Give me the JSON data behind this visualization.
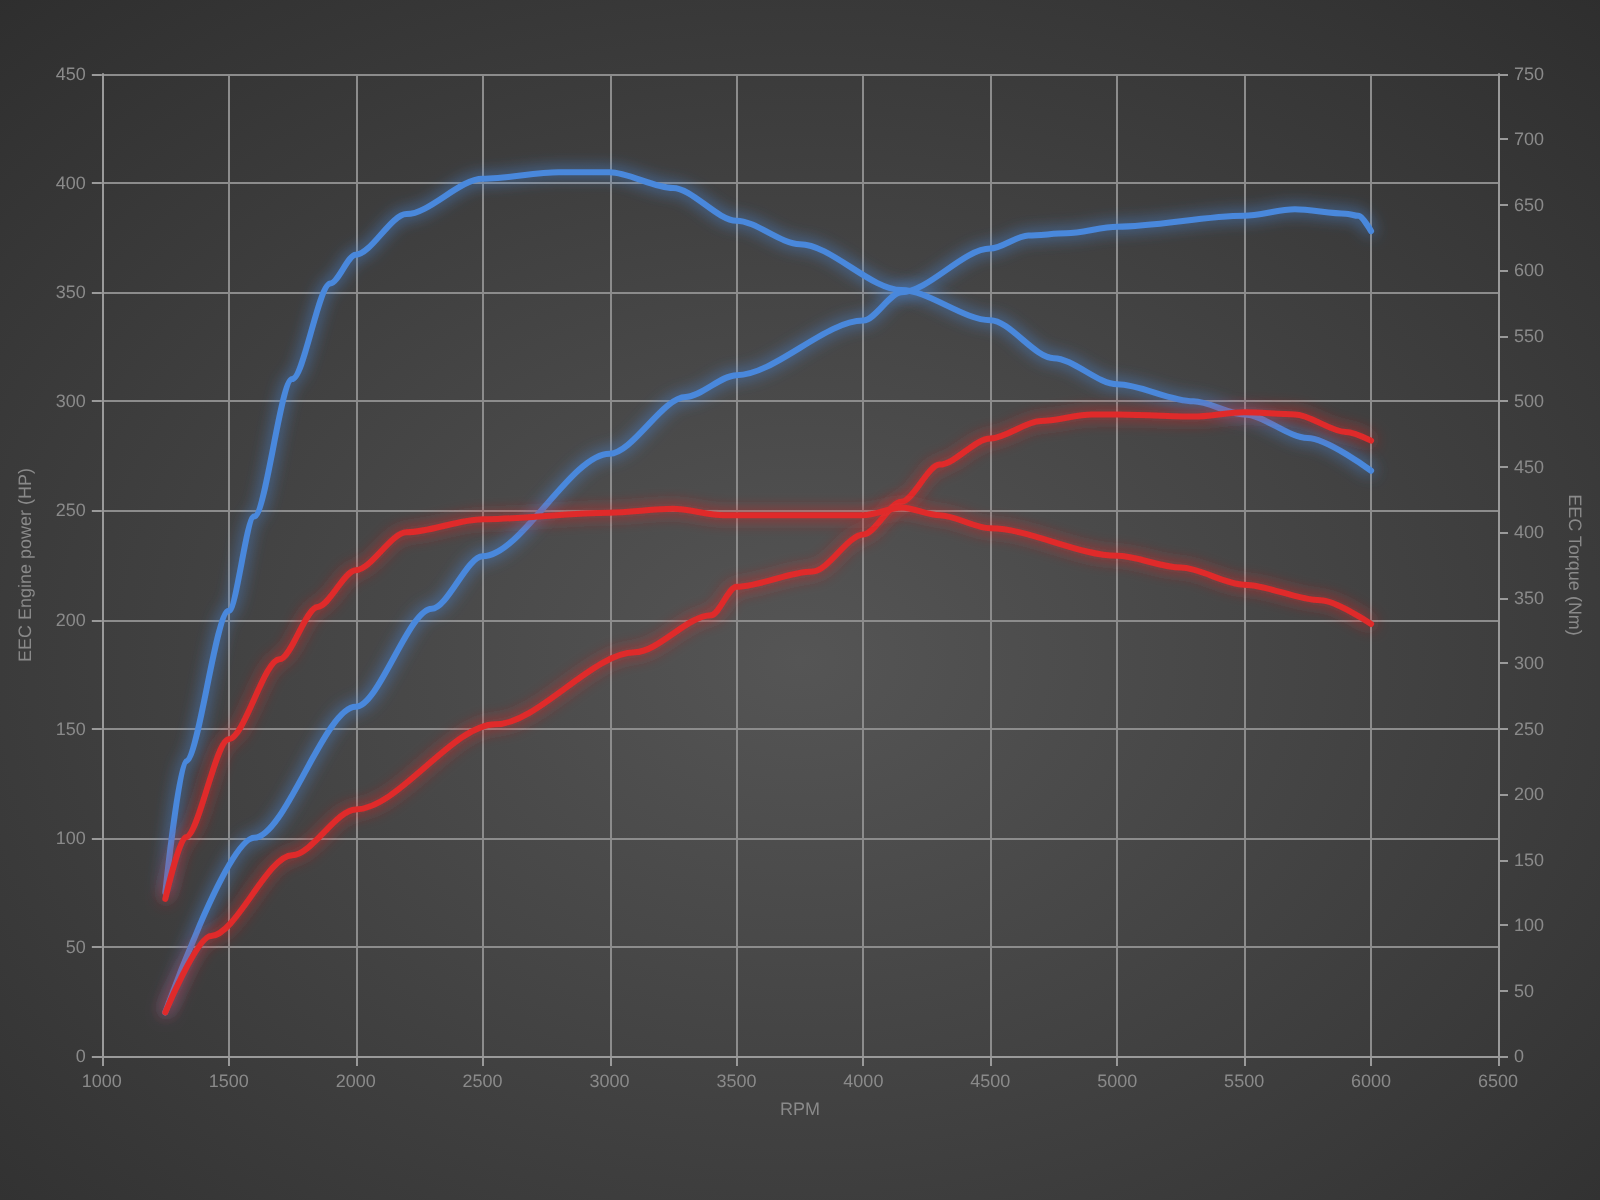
{
  "chart_data": {
    "type": "line",
    "xlabel": "RPM",
    "ylabel": "EEC Engine power (HP)",
    "y2label": "EEC Torque (Nm)",
    "xlim": [
      1000,
      6500
    ],
    "xticks": [
      1000,
      1500,
      2000,
      2500,
      3000,
      3500,
      4000,
      4500,
      5000,
      5500,
      6000,
      6500
    ],
    "ylim": [
      0,
      450
    ],
    "yticks": [
      0,
      50,
      100,
      150,
      200,
      250,
      300,
      350,
      400,
      450
    ],
    "y2lim": [
      0,
      750
    ],
    "y2ticks": [
      0,
      50,
      100,
      150,
      200,
      250,
      300,
      350,
      400,
      450,
      500,
      550,
      600,
      650,
      700,
      750
    ],
    "grid": true,
    "legend": false,
    "marker": "none",
    "line_style": "solid",
    "series": [
      {
        "color": "#4a88dc",
        "axis": "y",
        "x": [
          1250,
          1600,
          2000,
          2300,
          2500,
          3000,
          3300,
          3500,
          4000,
          4150,
          4500,
          4650,
          4800,
          5000,
          5500,
          5700,
          5900,
          5950,
          6000
        ],
        "values": [
          20,
          100,
          160,
          205,
          229,
          276,
          302,
          312,
          337,
          350,
          370,
          376,
          377,
          380,
          385,
          388,
          386,
          385,
          378
        ]
      },
      {
        "color": "#4a88dc",
        "axis": "y2",
        "x": [
          1250,
          1330,
          1500,
          1600,
          1750,
          1900,
          2000,
          2200,
          2500,
          2800,
          3000,
          3250,
          3500,
          3750,
          4150,
          4500,
          4750,
          5000,
          5300,
          5500,
          5750,
          6000
        ],
        "values": [
          125,
          225,
          340,
          412,
          517,
          590,
          612,
          643,
          670,
          675,
          675,
          663,
          638,
          620,
          585,
          562,
          533,
          513,
          500,
          490,
          472,
          447
        ]
      },
      {
        "color": "#e02a2a",
        "axis": "y",
        "x": [
          1250,
          1430,
          1750,
          2000,
          2550,
          3100,
          3400,
          3500,
          3800,
          4000,
          4150,
          4300,
          4500,
          4700,
          4900,
          5000,
          5300,
          5500,
          5700,
          5900,
          6000
        ],
        "values": [
          20,
          55,
          92,
          113,
          152,
          185,
          202,
          215,
          222,
          239,
          254,
          271,
          283,
          291,
          294,
          294,
          293,
          295,
          294,
          286,
          282
        ]
      },
      {
        "color": "#e02a2a",
        "axis": "y2",
        "x": [
          1250,
          1330,
          1500,
          1700,
          1850,
          2000,
          2200,
          2500,
          3000,
          3250,
          3450,
          3700,
          4000,
          4150,
          4300,
          4500,
          5000,
          5250,
          5500,
          5800,
          6000
        ],
        "values": [
          120,
          167,
          242,
          303,
          343,
          371,
          400,
          410,
          415,
          418,
          413,
          413,
          413,
          419,
          413,
          403,
          382,
          373,
          360,
          348,
          330
        ]
      }
    ]
  }
}
